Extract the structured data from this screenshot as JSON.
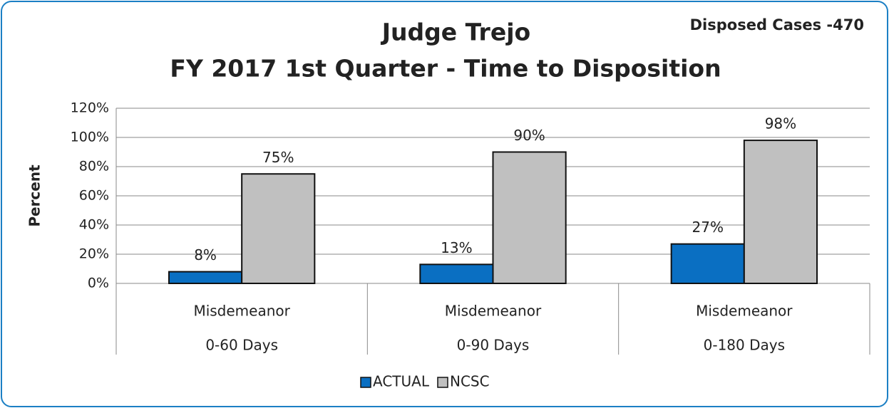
{
  "chart_data": {
    "type": "bar",
    "title": "Judge Trejo",
    "subtitle": "FY 2017 1st Quarter - Time to Disposition",
    "annotation": "Disposed Cases -470",
    "ylabel": "Percent",
    "categories": [
      [
        "Misdemeanor",
        "0-60 Days"
      ],
      [
        "Misdemeanor",
        "0-90 Days"
      ],
      [
        "Misdemeanor",
        "0-180 Days"
      ]
    ],
    "series": [
      {
        "name": "ACTUAL",
        "color": "#0a6fc2",
        "values": [
          8,
          13,
          27
        ],
        "value_labels": [
          "8%",
          "13%",
          "27%"
        ]
      },
      {
        "name": "NCSC",
        "color": "#c0c0c0",
        "values": [
          75,
          90,
          98
        ],
        "value_labels": [
          "75%",
          "90%",
          "98%"
        ]
      }
    ],
    "ylim": [
      0,
      120
    ],
    "yticks": [
      {
        "value": 0,
        "label": "0%"
      },
      {
        "value": 20,
        "label": "20%"
      },
      {
        "value": 40,
        "label": "40%"
      },
      {
        "value": 60,
        "label": "60%"
      },
      {
        "value": 80,
        "label": "80%"
      },
      {
        "value": 100,
        "label": "100%"
      },
      {
        "value": 120,
        "label": "120%"
      }
    ],
    "grid": true,
    "legend": "bottom"
  }
}
